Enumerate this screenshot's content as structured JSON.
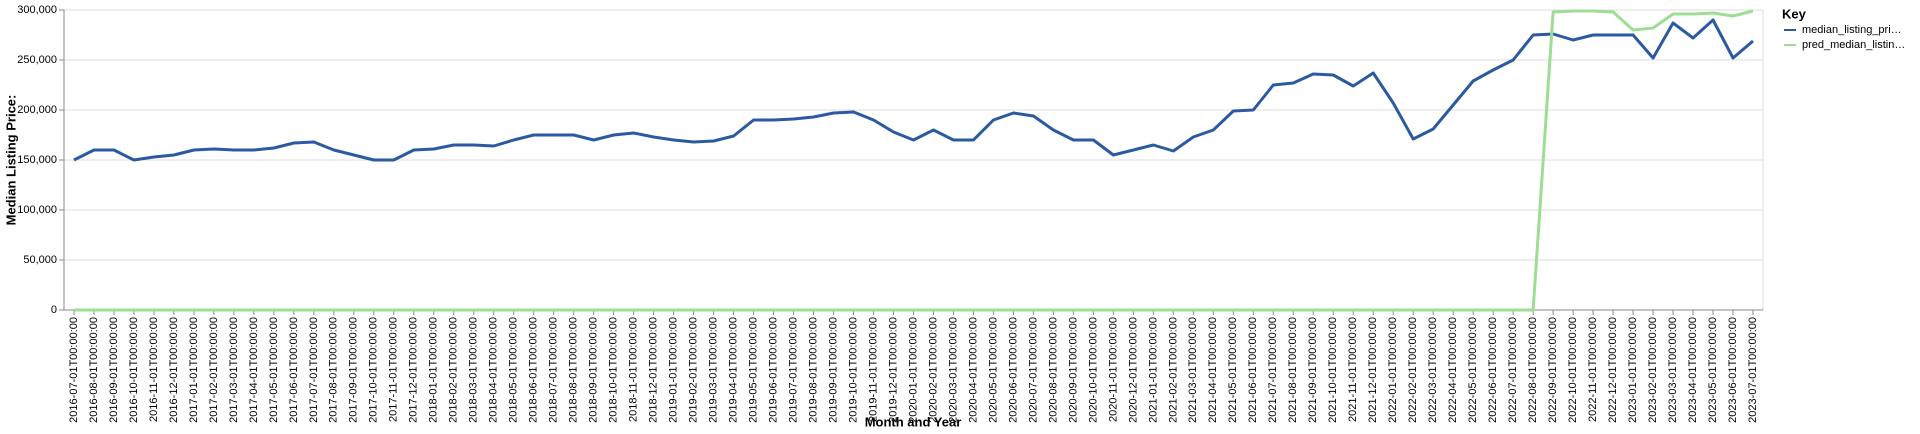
{
  "chart_data": {
    "type": "line",
    "x_label": "Month and Year",
    "y_label": "Median Listing Price:",
    "legend_title": "Key",
    "legend_position": "right",
    "grid": true,
    "categories": [
      "2016-07-01T00:00:00",
      "2016-08-01T00:00:00",
      "2016-09-01T00:00:00",
      "2016-10-01T00:00:00",
      "2016-11-01T00:00:00",
      "2016-12-01T00:00:00",
      "2017-01-01T00:00:00",
      "2017-02-01T00:00:00",
      "2017-03-01T00:00:00",
      "2017-04-01T00:00:00",
      "2017-05-01T00:00:00",
      "2017-06-01T00:00:00",
      "2017-07-01T00:00:00",
      "2017-08-01T00:00:00",
      "2017-09-01T00:00:00",
      "2017-10-01T00:00:00",
      "2017-11-01T00:00:00",
      "2017-12-01T00:00:00",
      "2018-01-01T00:00:00",
      "2018-02-01T00:00:00",
      "2018-03-01T00:00:00",
      "2018-04-01T00:00:00",
      "2018-05-01T00:00:00",
      "2018-06-01T00:00:00",
      "2018-07-01T00:00:00",
      "2018-08-01T00:00:00",
      "2018-09-01T00:00:00",
      "2018-10-01T00:00:00",
      "2018-11-01T00:00:00",
      "2018-12-01T00:00:00",
      "2019-01-01T00:00:00",
      "2019-02-01T00:00:00",
      "2019-03-01T00:00:00",
      "2019-04-01T00:00:00",
      "2019-05-01T00:00:00",
      "2019-06-01T00:00:00",
      "2019-07-01T00:00:00",
      "2019-08-01T00:00:00",
      "2019-09-01T00:00:00",
      "2019-10-01T00:00:00",
      "2019-11-01T00:00:00",
      "2019-12-01T00:00:00",
      "2020-01-01T00:00:00",
      "2020-02-01T00:00:00",
      "2020-03-01T00:00:00",
      "2020-04-01T00:00:00",
      "2020-05-01T00:00:00",
      "2020-06-01T00:00:00",
      "2020-07-01T00:00:00",
      "2020-08-01T00:00:00",
      "2020-09-01T00:00:00",
      "2020-10-01T00:00:00",
      "2020-11-01T00:00:00",
      "2020-12-01T00:00:00",
      "2021-01-01T00:00:00",
      "2021-02-01T00:00:00",
      "2021-03-01T00:00:00",
      "2021-04-01T00:00:00",
      "2021-05-01T00:00:00",
      "2021-06-01T00:00:00",
      "2021-07-01T00:00:00",
      "2021-08-01T00:00:00",
      "2021-09-01T00:00:00",
      "2021-10-01T00:00:00",
      "2021-11-01T00:00:00",
      "2021-12-01T00:00:00",
      "2022-01-01T00:00:00",
      "2022-02-01T00:00:00",
      "2022-03-01T00:00:00",
      "2022-04-01T00:00:00",
      "2022-05-01T00:00:00",
      "2022-06-01T00:00:00",
      "2022-07-01T00:00:00",
      "2022-08-01T00:00:00",
      "2022-09-01T00:00:00",
      "2022-10-01T00:00:00",
      "2022-11-01T00:00:00",
      "2022-12-01T00:00:00",
      "2023-01-01T00:00:00",
      "2023-02-01T00:00:00",
      "2023-03-01T00:00:00",
      "2023-04-01T00:00:00",
      "2023-05-01T00:00:00",
      "2023-06-01T00:00:00",
      "2023-07-01T00:00:00"
    ],
    "series": [
      {
        "name": "median_listing_pri…",
        "color": "#2b5aa0",
        "values": [
          150000,
          160000,
          160000,
          150000,
          153000,
          155000,
          160000,
          161000,
          160000,
          160000,
          162000,
          167000,
          168000,
          160000,
          155000,
          150000,
          150000,
          160000,
          161000,
          165000,
          165000,
          164000,
          170000,
          175000,
          175000,
          175000,
          170000,
          175000,
          177000,
          173000,
          170000,
          168000,
          169000,
          174000,
          190000,
          190000,
          191000,
          193000,
          197000,
          198000,
          190000,
          178000,
          170000,
          180000,
          170000,
          170000,
          190000,
          197000,
          194000,
          180000,
          170000,
          170000,
          155000,
          160000,
          165000,
          159000,
          173000,
          180000,
          199000,
          200000,
          225000,
          227000,
          236000,
          235000,
          224000,
          237000,
          207000,
          171000,
          181000,
          205000,
          229000,
          240000,
          250000,
          275000,
          276000,
          270000,
          275000,
          275000,
          275000,
          252000,
          287000,
          272000,
          290000,
          252000,
          269000
        ]
      },
      {
        "name": "pred_median_listin…",
        "color": "#9fdc94",
        "values": [
          0,
          0,
          0,
          0,
          0,
          0,
          0,
          0,
          0,
          0,
          0,
          0,
          0,
          0,
          0,
          0,
          0,
          0,
          0,
          0,
          0,
          0,
          0,
          0,
          0,
          0,
          0,
          0,
          0,
          0,
          0,
          0,
          0,
          0,
          0,
          0,
          0,
          0,
          0,
          0,
          0,
          0,
          0,
          0,
          0,
          0,
          0,
          0,
          0,
          0,
          0,
          0,
          0,
          0,
          0,
          0,
          0,
          0,
          0,
          0,
          0,
          0,
          0,
          0,
          0,
          0,
          0,
          0,
          0,
          0,
          0,
          0,
          0,
          0,
          298000,
          299000,
          299000,
          298000,
          280000,
          282000,
          296000,
          296000,
          297000,
          294000,
          299000
        ]
      }
    ],
    "ylim": [
      0,
      300000
    ],
    "yticks": [
      0,
      {
        "value": 50000,
        "label": "50,000"
      },
      {
        "value": 100000,
        "label": "100,000"
      },
      {
        "value": 150000,
        "label": "150,000"
      },
      {
        "value": 200000,
        "label": "200,000"
      },
      {
        "value": 250000,
        "label": "250,000"
      },
      {
        "value": 300000,
        "label": "300,000"
      }
    ]
  }
}
